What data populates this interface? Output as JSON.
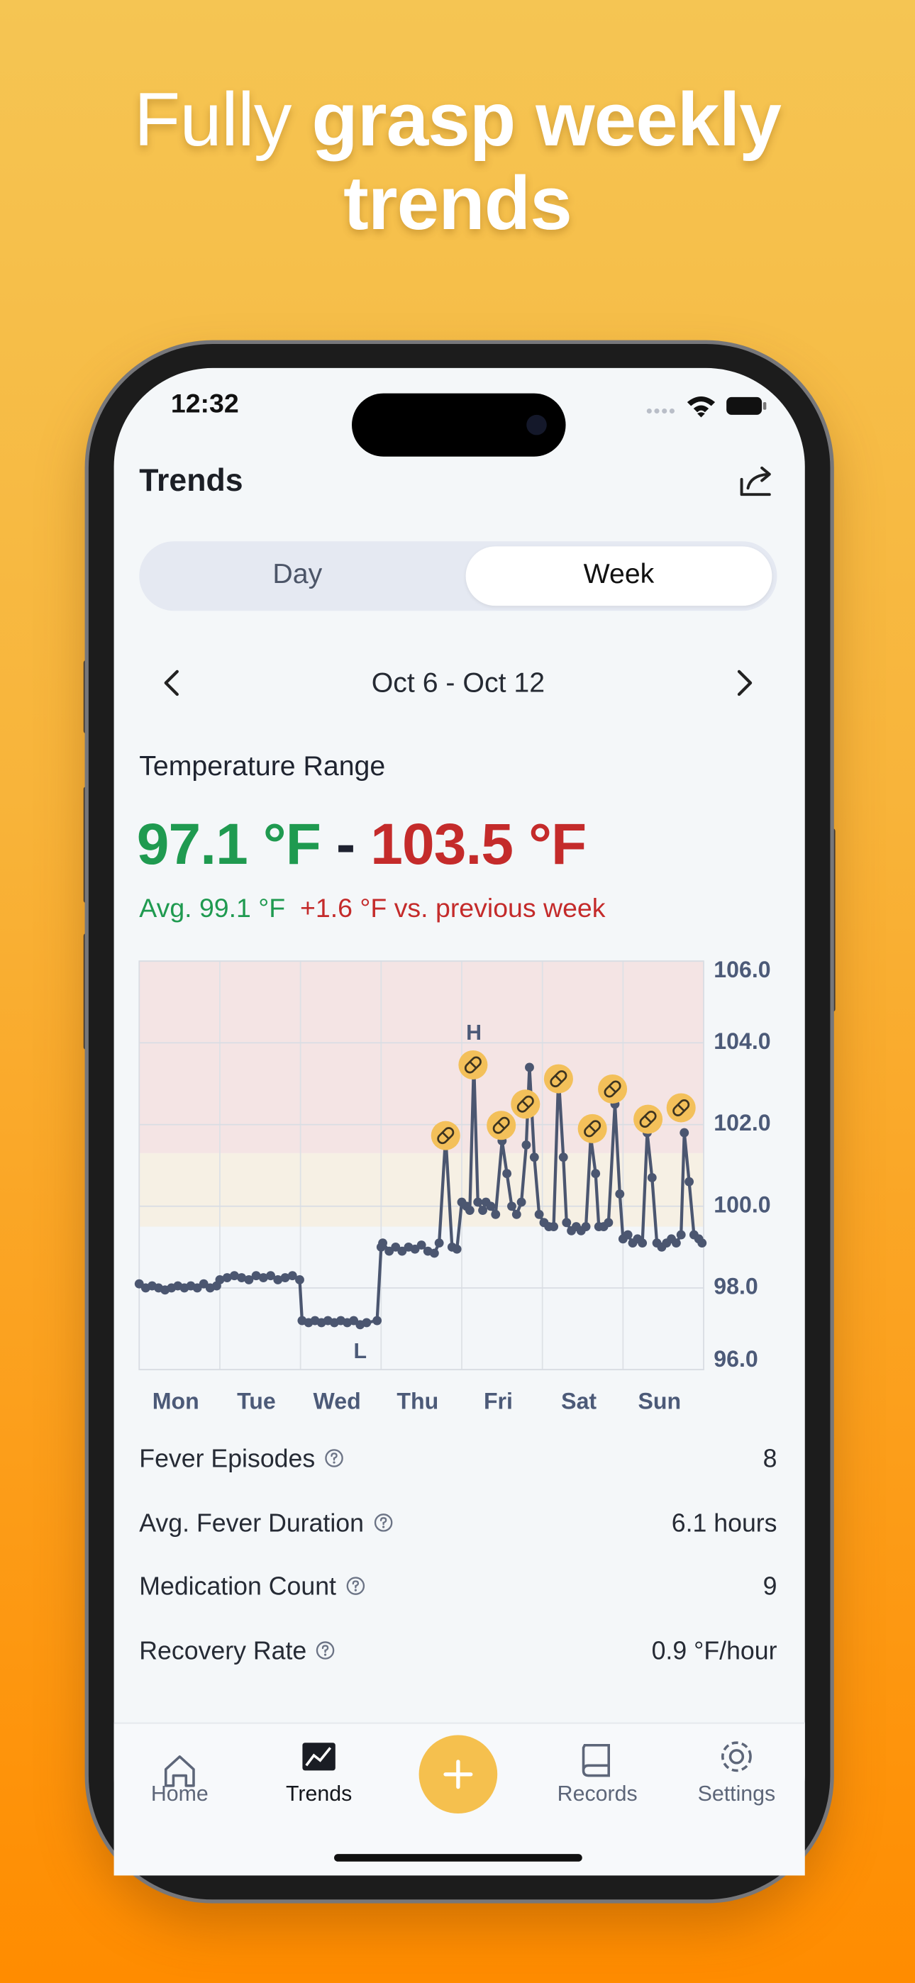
{
  "headline": {
    "regular": "Fully",
    "bold": "grasp weekly trends"
  },
  "status_bar": {
    "time": "12:32"
  },
  "header": {
    "title": "Trends"
  },
  "segmented": {
    "options": [
      "Day",
      "Week"
    ]
  },
  "date_nav": {
    "range": "Oct 6 - Oct 12"
  },
  "summary": {
    "label": "Temperature Range",
    "min": "97.1 °F",
    "separator": "-",
    "max": "103.5 °F",
    "average": "Avg. 99.1 °F",
    "change": "+1.6 °F vs. previous week"
  },
  "chart_data": {
    "type": "line",
    "categories": [
      "Mon",
      "Tue",
      "Wed",
      "Thu",
      "Fri",
      "Sat",
      "Sun"
    ],
    "xlim": [
      0,
      7
    ],
    "x": [
      0,
      0.08,
      0.16,
      0.24,
      0.32,
      0.4,
      0.48,
      0.56,
      0.64,
      0.72,
      0.8,
      0.88,
      0.96,
      1.0,
      1.09,
      1.18,
      1.27,
      1.36,
      1.45,
      1.54,
      1.63,
      1.72,
      1.81,
      1.9,
      1.99,
      2.02,
      2.1,
      2.18,
      2.26,
      2.34,
      2.42,
      2.5,
      2.58,
      2.66,
      2.74,
      2.82,
      2.95,
      3.0,
      3.02,
      3.1,
      3.18,
      3.26,
      3.34,
      3.42,
      3.5,
      3.58,
      3.66,
      3.72,
      3.8,
      3.88,
      3.94,
      4.0,
      4.06,
      4.1,
      4.15,
      4.2,
      4.26,
      4.3,
      4.36,
      4.42,
      4.5,
      4.56,
      4.62,
      4.68,
      4.74,
      4.8,
      4.84,
      4.9,
      4.96,
      5.02,
      5.08,
      5.14,
      5.2,
      5.26,
      5.3,
      5.36,
      5.42,
      5.48,
      5.54,
      5.6,
      5.66,
      5.7,
      5.76,
      5.82,
      5.9,
      5.96,
      6.0,
      6.06,
      6.12,
      6.18,
      6.24,
      6.3,
      6.36,
      6.42,
      6.48,
      6.54,
      6.6,
      6.66,
      6.72,
      6.76,
      6.82,
      6.88,
      6.94,
      6.98
    ],
    "values": [
      98.1,
      98.0,
      98.05,
      98.0,
      97.95,
      98.0,
      98.05,
      98.0,
      98.05,
      98.0,
      98.1,
      98.0,
      98.05,
      98.2,
      98.25,
      98.3,
      98.25,
      98.2,
      98.3,
      98.25,
      98.3,
      98.2,
      98.25,
      98.3,
      98.2,
      97.2,
      97.15,
      97.2,
      97.15,
      97.2,
      97.15,
      97.2,
      97.15,
      97.2,
      97.1,
      97.15,
      97.2,
      99.0,
      99.1,
      98.9,
      99.0,
      98.9,
      99.0,
      98.95,
      99.05,
      98.9,
      98.85,
      99.1,
      101.7,
      99.0,
      98.95,
      100.1,
      100.0,
      99.9,
      103.5,
      100.1,
      99.9,
      100.1,
      100.0,
      99.8,
      101.6,
      100.8,
      100.0,
      99.8,
      100.1,
      101.5,
      103.4,
      101.2,
      99.8,
      99.6,
      99.5,
      99.5,
      103.2,
      101.2,
      99.6,
      99.4,
      99.5,
      99.4,
      99.5,
      101.7,
      100.8,
      99.5,
      99.5,
      99.6,
      102.5,
      100.3,
      99.2,
      99.3,
      99.1,
      99.2,
      99.1,
      101.8,
      100.7,
      99.1,
      99.0,
      99.1,
      99.2,
      99.1,
      99.3,
      101.8,
      100.6,
      99.3,
      99.2,
      99.1
    ],
    "color": "#4b5670",
    "medication": {
      "color": "#f3c05a",
      "x": [
        3.8,
        4.14,
        4.49,
        4.79,
        5.2,
        5.62,
        5.87,
        6.31,
        6.72
      ],
      "y": [
        101.73,
        103.46,
        101.98,
        102.5,
        103.12,
        101.9,
        102.87,
        102.13,
        102.41
      ]
    },
    "annotations": [
      {
        "text": "H",
        "x": 4.15,
        "y": 103.5
      },
      {
        "text": "L",
        "x": 2.74,
        "y": 97.1
      }
    ],
    "bands": [
      {
        "from": 99.5,
        "to": 101.3,
        "color": "#f6f0e4"
      },
      {
        "from": 101.3,
        "to": 106,
        "color": "#f4e4e4"
      }
    ],
    "ylim": [
      96,
      106
    ],
    "yticks": [
      {
        "value": 96,
        "label": "96.0"
      },
      {
        "value": 98,
        "label": "98.0"
      },
      {
        "value": 100,
        "label": "100.0"
      },
      {
        "value": 102,
        "label": "102.0"
      },
      {
        "value": 104,
        "label": "104.0"
      },
      {
        "value": 106,
        "label": "106.0"
      }
    ],
    "grid": true
  },
  "stats": [
    {
      "label": "Fever Episodes",
      "value": "8"
    },
    {
      "label": "Avg. Fever Duration",
      "value": "6.1 hours"
    },
    {
      "label": "Medication Count",
      "value": "9"
    },
    {
      "label": "Recovery Rate",
      "value": "0.9 °F/hour"
    }
  ],
  "tab_bar": {
    "tabs": [
      "Home",
      "Trends",
      "Records",
      "Settings"
    ]
  }
}
